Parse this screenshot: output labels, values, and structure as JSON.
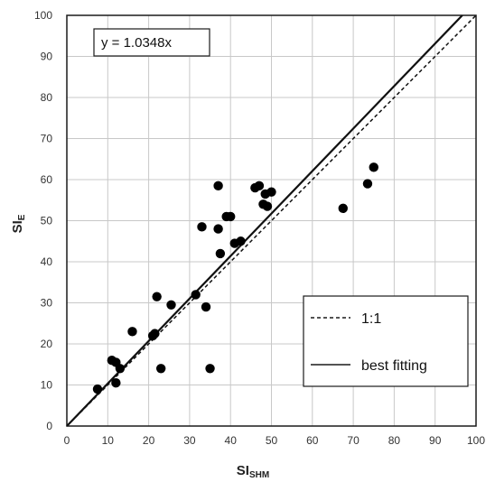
{
  "chart_data": {
    "type": "scatter",
    "xlabel_main": "SI",
    "xlabel_sub": "SHM",
    "ylabel_main": "SI",
    "ylabel_sub": "E",
    "xlim": [
      0,
      100
    ],
    "ylim": [
      0,
      100
    ],
    "xticks": [
      0,
      10,
      20,
      30,
      40,
      50,
      60,
      70,
      80,
      90,
      100
    ],
    "yticks": [
      0,
      10,
      20,
      30,
      40,
      50,
      60,
      70,
      80,
      90,
      100
    ],
    "grid": true,
    "annotation": "y = 1.0348x",
    "points": [
      [
        7.5,
        9
      ],
      [
        11,
        16
      ],
      [
        12,
        10.5
      ],
      [
        12,
        15.5
      ],
      [
        13,
        14
      ],
      [
        16,
        23
      ],
      [
        21,
        22
      ],
      [
        21.5,
        22.5
      ],
      [
        22,
        31.5
      ],
      [
        23,
        14
      ],
      [
        25.5,
        29.5
      ],
      [
        31.5,
        32
      ],
      [
        33,
        48.5
      ],
      [
        34,
        29
      ],
      [
        35,
        14
      ],
      [
        37,
        58.5
      ],
      [
        37,
        48
      ],
      [
        37.5,
        42
      ],
      [
        39,
        51
      ],
      [
        40,
        51
      ],
      [
        41,
        44.5
      ],
      [
        42.5,
        45
      ],
      [
        46,
        58
      ],
      [
        47,
        58.5
      ],
      [
        48,
        54
      ],
      [
        48.5,
        56.5
      ],
      [
        49,
        53.5
      ],
      [
        50,
        57
      ],
      [
        67.5,
        53
      ],
      [
        73.5,
        59
      ],
      [
        75,
        63
      ]
    ],
    "lines": [
      {
        "name": "1:1",
        "slope": 1,
        "style": "dashed"
      },
      {
        "name": "best fitting",
        "slope": 1.0348,
        "style": "solid"
      }
    ],
    "legend_position": "bottom-right"
  }
}
